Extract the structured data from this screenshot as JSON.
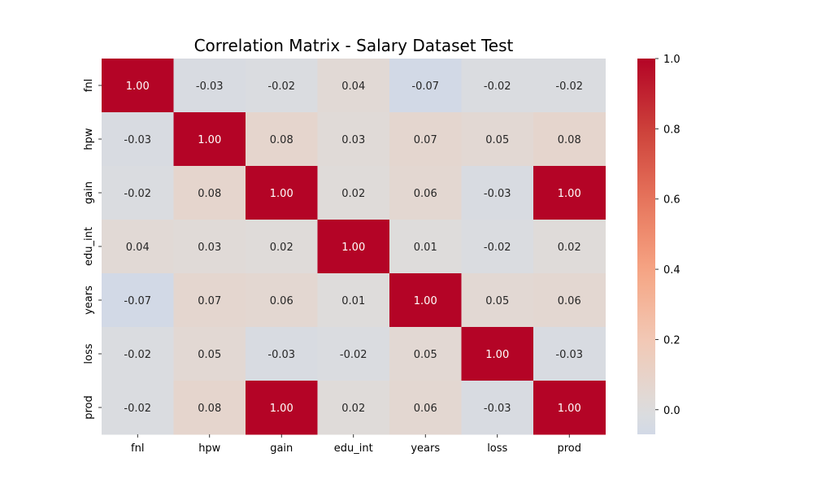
{
  "chart_data": {
    "type": "heatmap",
    "title": "Correlation Matrix - Salary Dataset Test",
    "xlabel": "",
    "ylabel": "",
    "categories": [
      "fnl",
      "hpw",
      "gain",
      "edu_int",
      "years",
      "loss",
      "prod"
    ],
    "values": [
      [
        1.0,
        -0.03,
        -0.02,
        0.04,
        -0.07,
        -0.02,
        -0.02
      ],
      [
        -0.03,
        1.0,
        0.08,
        0.03,
        0.07,
        0.05,
        0.08
      ],
      [
        -0.02,
        0.08,
        1.0,
        0.02,
        0.06,
        -0.03,
        1.0
      ],
      [
        0.04,
        0.03,
        0.02,
        1.0,
        0.01,
        -0.02,
        0.02
      ],
      [
        -0.07,
        0.07,
        0.06,
        0.01,
        1.0,
        0.05,
        0.06
      ],
      [
        -0.02,
        0.05,
        -0.03,
        -0.02,
        0.05,
        1.0,
        -0.03
      ],
      [
        -0.02,
        0.08,
        1.0,
        0.02,
        0.06,
        -0.03,
        1.0
      ]
    ],
    "cell_labels": [
      [
        "1.00",
        "-0.03",
        "-0.02",
        "0.04",
        "-0.07",
        "-0.02",
        "-0.02"
      ],
      [
        "-0.03",
        "1.00",
        "0.08",
        "0.03",
        "0.07",
        "0.05",
        "0.08"
      ],
      [
        "-0.02",
        "0.08",
        "1.00",
        "0.02",
        "0.06",
        "-0.03",
        "1.00"
      ],
      [
        "0.04",
        "0.03",
        "0.02",
        "1.00",
        "0.01",
        "-0.02",
        "0.02"
      ],
      [
        "-0.07",
        "0.07",
        "0.06",
        "0.01",
        "1.00",
        "0.05",
        "0.06"
      ],
      [
        "-0.02",
        "0.05",
        "-0.03",
        "-0.02",
        "0.05",
        "1.00",
        "-0.03"
      ],
      [
        "-0.02",
        "0.08",
        "1.00",
        "0.02",
        "0.06",
        "-0.03",
        "1.00"
      ]
    ],
    "colorbar": {
      "colormap": "coolwarm",
      "center": 0.0,
      "vmin": -0.07,
      "vmax": 1.0,
      "ticks": [
        0.0,
        0.2,
        0.4,
        0.6,
        0.8,
        1.0
      ],
      "tick_labels": [
        "0.0",
        "0.2",
        "0.4",
        "0.6",
        "0.8",
        "1.0"
      ]
    },
    "grid": false
  }
}
